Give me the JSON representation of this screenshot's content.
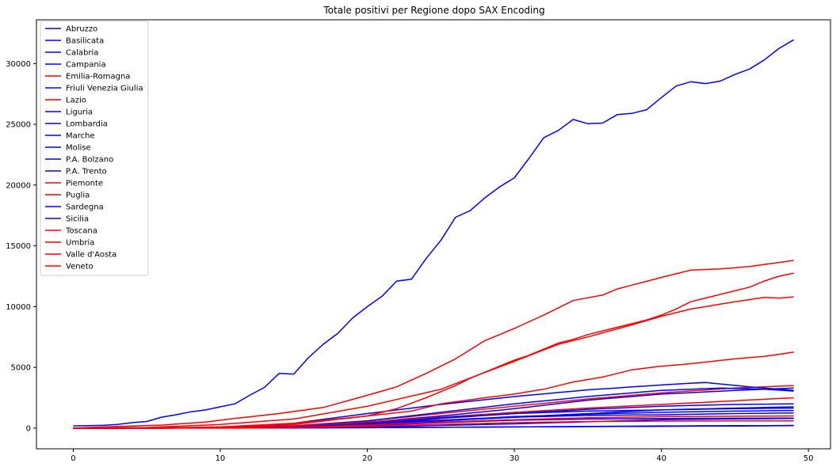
{
  "colors": {
    "blue": "#0000ff",
    "red": "#ff0000"
  },
  "chart_data": {
    "type": "line",
    "title": "Totale positivi per Regione dopo SAX Encoding",
    "xlim": [
      -2.5,
      51.5
    ],
    "ylim": [
      -1700,
      33600
    ],
    "xticks": [
      0,
      10,
      20,
      30,
      40,
      50
    ],
    "yticks": [
      0,
      5000,
      10000,
      15000,
      20000,
      25000,
      30000
    ],
    "grid": false,
    "legend_position": "top-left",
    "series": [
      {
        "name": "Abruzzo",
        "color": "#0000ff",
        "key": [
          [
            0,
            0
          ],
          [
            10,
            10
          ],
          [
            15,
            60
          ],
          [
            20,
            250
          ],
          [
            25,
            600
          ],
          [
            30,
            900
          ],
          [
            35,
            1200
          ],
          [
            40,
            1500
          ],
          [
            45,
            1650
          ],
          [
            49,
            1750
          ]
        ]
      },
      {
        "name": "Basilicata",
        "color": "#0000ff",
        "key": [
          [
            0,
            0
          ],
          [
            10,
            5
          ],
          [
            20,
            50
          ],
          [
            30,
            100
          ],
          [
            40,
            180
          ],
          [
            49,
            220
          ]
        ]
      },
      {
        "name": "Calabria",
        "color": "#0000ff",
        "key": [
          [
            0,
            0
          ],
          [
            10,
            5
          ],
          [
            20,
            100
          ],
          [
            30,
            350
          ],
          [
            40,
            700
          ],
          [
            49,
            800
          ]
        ]
      },
      {
        "name": "Campania",
        "color": "#0000ff",
        "key": [
          [
            0,
            0
          ],
          [
            10,
            20
          ],
          [
            15,
            150
          ],
          [
            20,
            500
          ],
          [
            25,
            1000
          ],
          [
            30,
            1600
          ],
          [
            35,
            2300
          ],
          [
            40,
            2800
          ],
          [
            45,
            3100
          ],
          [
            49,
            3300
          ]
        ]
      },
      {
        "name": "Emilia-Romagna",
        "color": "#ff0000",
        "key": [
          [
            0,
            0
          ],
          [
            5,
            50
          ],
          [
            10,
            300
          ],
          [
            15,
            750
          ],
          [
            20,
            1800
          ],
          [
            25,
            3200
          ],
          [
            30,
            5500
          ],
          [
            33,
            6900
          ],
          [
            35,
            7500
          ],
          [
            38,
            8500
          ],
          [
            40,
            9200
          ],
          [
            42,
            9800
          ],
          [
            45,
            10400
          ],
          [
            47,
            10750
          ],
          [
            48,
            10700
          ],
          [
            49,
            10800
          ]
        ]
      },
      {
        "name": "Friuli Venezia Giulia",
        "color": "#0000ff",
        "key": [
          [
            0,
            0
          ],
          [
            10,
            20
          ],
          [
            15,
            150
          ],
          [
            20,
            400
          ],
          [
            25,
            650
          ],
          [
            30,
            950
          ],
          [
            35,
            1150
          ],
          [
            40,
            1300
          ],
          [
            45,
            1400
          ],
          [
            49,
            1450
          ]
        ]
      },
      {
        "name": "Lazio",
        "color": "#ff0000",
        "key": [
          [
            0,
            0
          ],
          [
            10,
            30
          ],
          [
            15,
            200
          ],
          [
            20,
            600
          ],
          [
            25,
            1200
          ],
          [
            30,
            1800
          ],
          [
            35,
            2400
          ],
          [
            40,
            2900
          ],
          [
            45,
            3300
          ],
          [
            49,
            3500
          ]
        ]
      },
      {
        "name": "Liguria",
        "color": "#0000ff",
        "key": [
          [
            0,
            0
          ],
          [
            10,
            10
          ],
          [
            15,
            150
          ],
          [
            20,
            600
          ],
          [
            25,
            1300
          ],
          [
            30,
            2000
          ],
          [
            35,
            2600
          ],
          [
            40,
            3100
          ],
          [
            42,
            3200
          ],
          [
            44,
            3300
          ],
          [
            47,
            3200
          ],
          [
            49,
            3050
          ]
        ]
      },
      {
        "name": "Lombardia",
        "color": "#0000ff",
        "key": [
          [
            0,
            180
          ],
          [
            2,
            230
          ],
          [
            3,
            300
          ],
          [
            4,
            450
          ],
          [
            5,
            550
          ],
          [
            6,
            900
          ],
          [
            7,
            1100
          ],
          [
            8,
            1350
          ],
          [
            9,
            1500
          ],
          [
            10,
            1750
          ],
          [
            11,
            2000
          ],
          [
            12,
            2700
          ],
          [
            13,
            3350
          ],
          [
            14,
            4500
          ],
          [
            15,
            4450
          ],
          [
            16,
            5800
          ],
          [
            17,
            6900
          ],
          [
            18,
            7800
          ],
          [
            19,
            9050
          ],
          [
            20,
            10000
          ],
          [
            21,
            10850
          ],
          [
            22,
            12100
          ],
          [
            23,
            12250
          ],
          [
            24,
            13950
          ],
          [
            25,
            15450
          ],
          [
            26,
            17350
          ],
          [
            27,
            17900
          ],
          [
            28,
            18950
          ],
          [
            29,
            19850
          ],
          [
            30,
            20600
          ],
          [
            31,
            22200
          ],
          [
            32,
            23900
          ],
          [
            33,
            24500
          ],
          [
            34,
            25400
          ],
          [
            35,
            25050
          ],
          [
            36,
            25100
          ],
          [
            37,
            25800
          ],
          [
            38,
            25900
          ],
          [
            39,
            26200
          ],
          [
            40,
            27200
          ],
          [
            41,
            28150
          ],
          [
            42,
            28500
          ],
          [
            43,
            28350
          ],
          [
            44,
            28550
          ],
          [
            45,
            29100
          ],
          [
            46,
            29550
          ],
          [
            47,
            30300
          ],
          [
            48,
            31250
          ],
          [
            49,
            31950
          ]
        ]
      },
      {
        "name": "Marche",
        "color": "#0000ff",
        "key": [
          [
            0,
            0
          ],
          [
            10,
            50
          ],
          [
            15,
            400
          ],
          [
            20,
            1200
          ],
          [
            25,
            1950
          ],
          [
            30,
            2600
          ],
          [
            35,
            3150
          ],
          [
            40,
            3550
          ],
          [
            42,
            3700
          ],
          [
            43,
            3750
          ],
          [
            46,
            3400
          ],
          [
            49,
            3100
          ]
        ]
      },
      {
        "name": "Molise",
        "color": "#0000ff",
        "key": [
          [
            0,
            0
          ],
          [
            10,
            0
          ],
          [
            20,
            30
          ],
          [
            30,
            100
          ],
          [
            40,
            150
          ],
          [
            49,
            200
          ]
        ]
      },
      {
        "name": "P.A. Bolzano",
        "color": "#0000ff",
        "key": [
          [
            0,
            0
          ],
          [
            10,
            10
          ],
          [
            15,
            80
          ],
          [
            20,
            300
          ],
          [
            25,
            600
          ],
          [
            30,
            900
          ],
          [
            35,
            1050
          ],
          [
            40,
            1100
          ],
          [
            45,
            1200
          ],
          [
            49,
            1250
          ]
        ]
      },
      {
        "name": "P.A. Trento",
        "color": "#0000ff",
        "key": [
          [
            0,
            0
          ],
          [
            10,
            10
          ],
          [
            15,
            100
          ],
          [
            20,
            300
          ],
          [
            25,
            800
          ],
          [
            30,
            1200
          ],
          [
            35,
            1400
          ],
          [
            40,
            1500
          ],
          [
            45,
            1600
          ],
          [
            49,
            1650
          ]
        ]
      },
      {
        "name": "Piemonte",
        "color": "#ff0000",
        "key": [
          [
            0,
            0
          ],
          [
            5,
            20
          ],
          [
            10,
            100
          ],
          [
            15,
            400
          ],
          [
            20,
            1000
          ],
          [
            22,
            1600
          ],
          [
            24,
            2500
          ],
          [
            25,
            3000
          ],
          [
            26,
            3500
          ],
          [
            27,
            4100
          ],
          [
            28,
            4600
          ],
          [
            29,
            5100
          ],
          [
            30,
            5600
          ],
          [
            31,
            6000
          ],
          [
            32,
            6500
          ],
          [
            33,
            7000
          ],
          [
            34,
            7300
          ],
          [
            35,
            7700
          ],
          [
            37,
            8300
          ],
          [
            38,
            8600
          ],
          [
            39,
            8900
          ],
          [
            40,
            9300
          ],
          [
            41,
            9800
          ],
          [
            42,
            10400
          ],
          [
            43,
            10700
          ],
          [
            44,
            11000
          ],
          [
            45,
            11300
          ],
          [
            46,
            11600
          ],
          [
            47,
            12100
          ],
          [
            48,
            12500
          ],
          [
            49,
            12750
          ]
        ]
      },
      {
        "name": "Puglia",
        "color": "#ff0000",
        "key": [
          [
            0,
            0
          ],
          [
            10,
            20
          ],
          [
            15,
            150
          ],
          [
            20,
            500
          ],
          [
            25,
            900
          ],
          [
            30,
            1300
          ],
          [
            35,
            1650
          ],
          [
            40,
            1950
          ],
          [
            45,
            2250
          ],
          [
            49,
            2500
          ]
        ]
      },
      {
        "name": "Sardegna",
        "color": "#0000ff",
        "key": [
          [
            0,
            0
          ],
          [
            10,
            5
          ],
          [
            15,
            40
          ],
          [
            20,
            200
          ],
          [
            25,
            450
          ],
          [
            30,
            650
          ],
          [
            35,
            750
          ],
          [
            40,
            800
          ],
          [
            49,
            820
          ]
        ]
      },
      {
        "name": "Sicilia",
        "color": "#0000ff",
        "key": [
          [
            0,
            0
          ],
          [
            10,
            10
          ],
          [
            15,
            100
          ],
          [
            20,
            400
          ],
          [
            25,
            850
          ],
          [
            30,
            1200
          ],
          [
            35,
            1550
          ],
          [
            40,
            1800
          ],
          [
            45,
            1950
          ],
          [
            49,
            2000
          ]
        ]
      },
      {
        "name": "Toscana",
        "color": "#ff0000",
        "key": [
          [
            0,
            0
          ],
          [
            10,
            50
          ],
          [
            15,
            300
          ],
          [
            20,
            1000
          ],
          [
            23,
            1400
          ],
          [
            25,
            2000
          ],
          [
            28,
            2500
          ],
          [
            30,
            2800
          ],
          [
            32,
            3200
          ],
          [
            34,
            3800
          ],
          [
            36,
            4200
          ],
          [
            38,
            4800
          ],
          [
            40,
            5100
          ],
          [
            42,
            5300
          ],
          [
            45,
            5700
          ],
          [
            47,
            5900
          ],
          [
            49,
            6250
          ]
        ]
      },
      {
        "name": "Umbria",
        "color": "#ff0000",
        "key": [
          [
            0,
            0
          ],
          [
            10,
            5
          ],
          [
            15,
            60
          ],
          [
            20,
            250
          ],
          [
            25,
            500
          ],
          [
            30,
            700
          ],
          [
            35,
            850
          ],
          [
            40,
            950
          ],
          [
            49,
            1000
          ]
        ]
      },
      {
        "name": "Valle d'Aosta",
        "color": "#ff0000",
        "key": [
          [
            0,
            0
          ],
          [
            10,
            5
          ],
          [
            15,
            40
          ],
          [
            20,
            150
          ],
          [
            25,
            300
          ],
          [
            30,
            450
          ],
          [
            35,
            550
          ],
          [
            40,
            580
          ],
          [
            49,
            600
          ]
        ]
      },
      {
        "name": "Veneto",
        "color": "#ff0000",
        "key": [
          [
            0,
            0
          ],
          [
            2,
            100
          ],
          [
            6,
            250
          ],
          [
            9,
            500
          ],
          [
            11,
            800
          ],
          [
            14,
            1200
          ],
          [
            17,
            1700
          ],
          [
            20,
            2700
          ],
          [
            22,
            3400
          ],
          [
            24,
            4500
          ],
          [
            26,
            5700
          ],
          [
            28,
            7200
          ],
          [
            30,
            8200
          ],
          [
            32,
            9300
          ],
          [
            34,
            10500
          ],
          [
            36,
            10950
          ],
          [
            37,
            11450
          ],
          [
            40,
            12400
          ],
          [
            42,
            13000
          ],
          [
            44,
            13100
          ],
          [
            46,
            13300
          ],
          [
            49,
            13800
          ]
        ]
      }
    ]
  }
}
